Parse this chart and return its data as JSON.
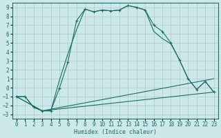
{
  "xlabel": "Humidex (Indice chaleur)",
  "xlim": [
    -0.5,
    23.5
  ],
  "ylim": [
    -3.5,
    9.5
  ],
  "xticks": [
    0,
    1,
    2,
    3,
    4,
    5,
    6,
    7,
    8,
    9,
    10,
    11,
    12,
    13,
    14,
    15,
    16,
    17,
    18,
    19,
    20,
    21,
    22,
    23
  ],
  "yticks": [
    -3,
    -2,
    -1,
    0,
    1,
    2,
    3,
    4,
    5,
    6,
    7,
    8,
    9
  ],
  "bg_color": "#cce8e8",
  "line_color": "#1a6b6b",
  "grid_color": "#aacccc",
  "line1_x": [
    0,
    1,
    2,
    3,
    4,
    5,
    6,
    7,
    8,
    9,
    10,
    11,
    12,
    13,
    14,
    15,
    16,
    17,
    18,
    19,
    20,
    21,
    22,
    23
  ],
  "line1_y": [
    -1.0,
    -1.0,
    -2.2,
    -2.6,
    -2.6,
    -0.1,
    2.9,
    7.5,
    8.8,
    8.5,
    8.7,
    8.6,
    8.7,
    9.2,
    9.0,
    8.7,
    7.0,
    6.3,
    5.0,
    3.1,
    1.0,
    -0.2,
    0.7,
    -0.5
  ],
  "line2_x": [
    0,
    1,
    2,
    3,
    4,
    5,
    6,
    7,
    8,
    9,
    10,
    11,
    12,
    13,
    14,
    15,
    16,
    17,
    18,
    19,
    20,
    21,
    22,
    23
  ],
  "line2_y": [
    -1.0,
    -1.0,
    -2.2,
    -2.6,
    -2.6,
    0.8,
    3.8,
    6.5,
    8.8,
    8.5,
    8.7,
    8.6,
    8.7,
    9.2,
    9.0,
    8.7,
    6.3,
    5.5,
    4.9,
    3.1,
    1.0,
    -0.2,
    0.7,
    -0.5
  ],
  "line3_x": [
    0,
    3,
    23
  ],
  "line3_y": [
    -1.0,
    -2.6,
    1.0
  ],
  "line4_x": [
    0,
    3,
    23
  ],
  "line4_y": [
    -1.0,
    -2.6,
    -0.5
  ]
}
